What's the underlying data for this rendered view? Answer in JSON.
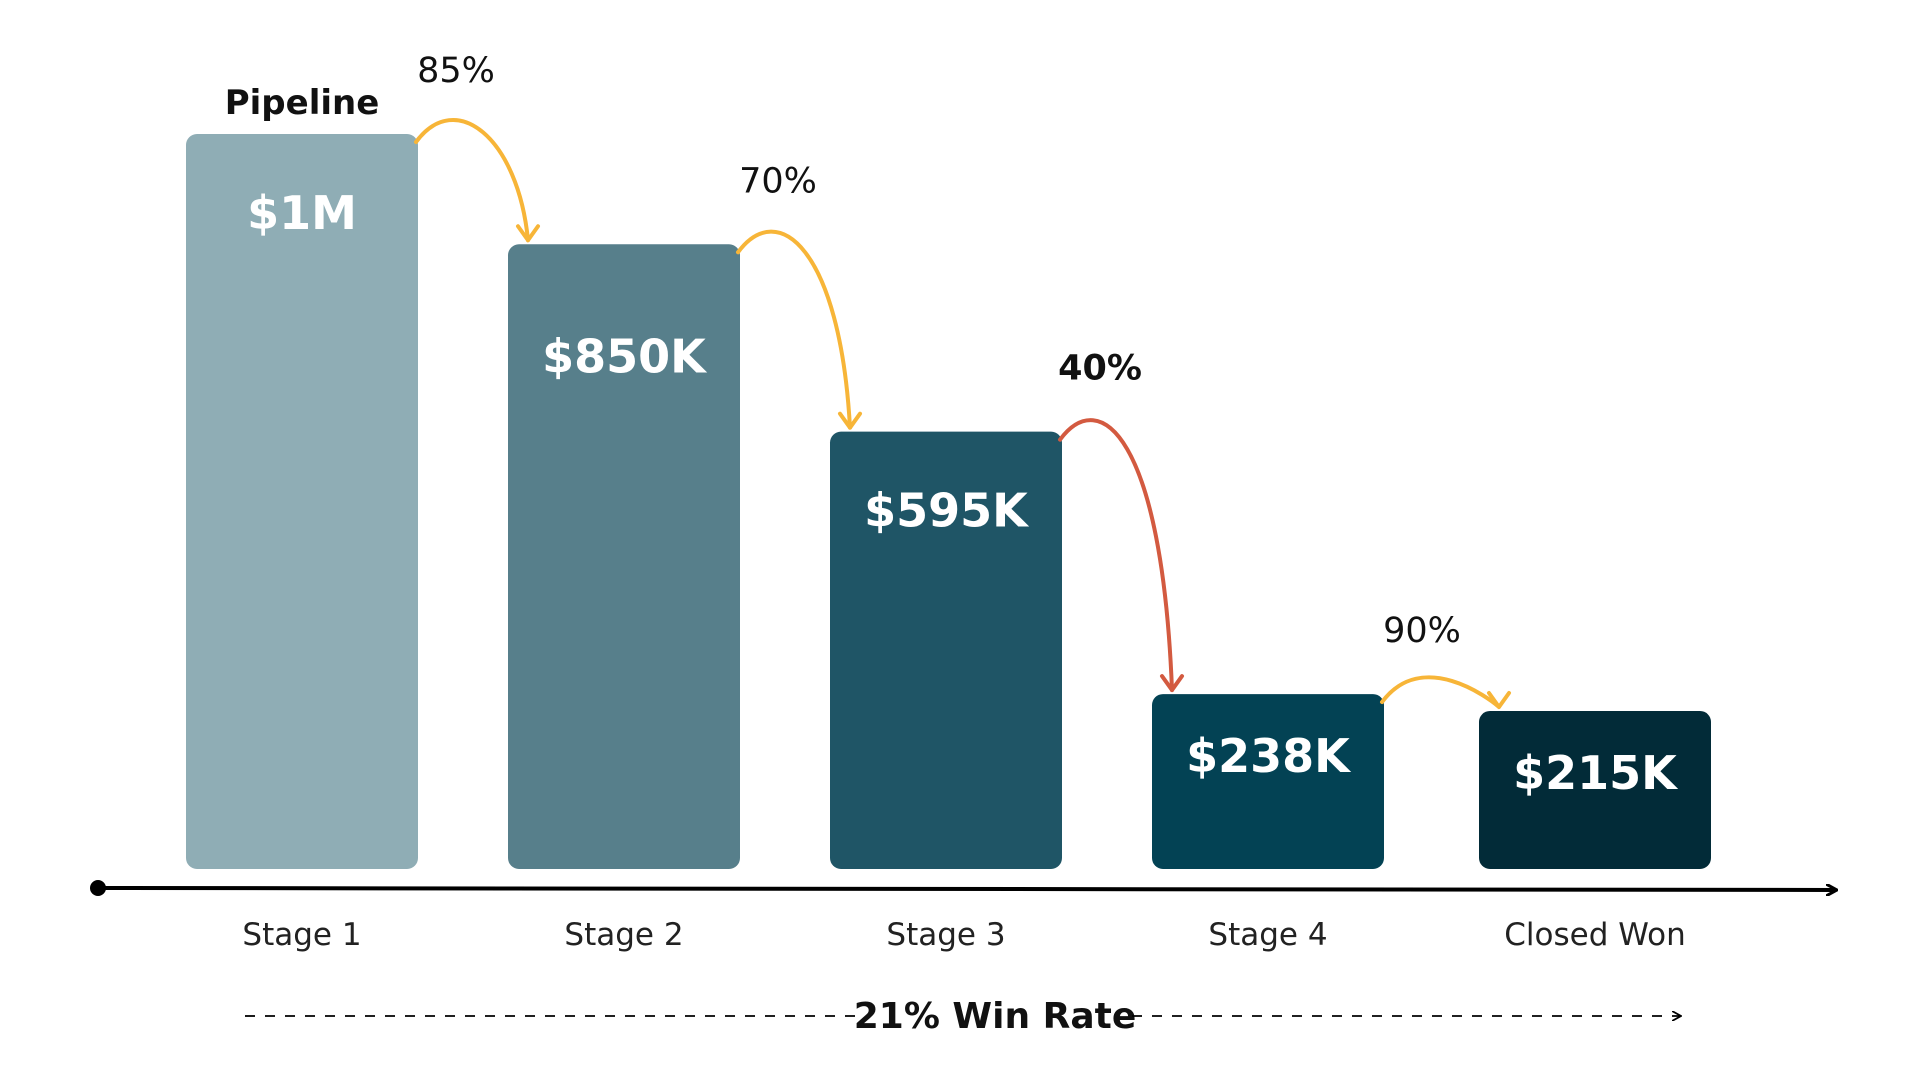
{
  "chart_data": {
    "type": "bar",
    "title": "Pipeline",
    "categories": [
      "Stage 1",
      "Stage 2",
      "Stage 3",
      "Stage 4",
      "Closed Won"
    ],
    "values": [
      1000000,
      850000,
      595000,
      238000,
      215000
    ],
    "value_labels": [
      "$1M",
      "$850K",
      "$595K",
      "$238K",
      "$215K"
    ],
    "bar_colors": [
      "#8fadb5",
      "#577f8b",
      "#1f5566",
      "#034254",
      "#022b38"
    ],
    "ylim": [
      0,
      1000000
    ],
    "grid": false,
    "conversion_rates": [
      {
        "from": "Stage 1",
        "to": "Stage 2",
        "label": "85%",
        "color": "#f7b538",
        "bold": false
      },
      {
        "from": "Stage 2",
        "to": "Stage 3",
        "label": "70%",
        "color": "#f7b538",
        "bold": false
      },
      {
        "from": "Stage 3",
        "to": "Stage 4",
        "label": "40%",
        "color": "#d35a40",
        "bold": true
      },
      {
        "from": "Stage 4",
        "to": "Closed Won",
        "label": "90%",
        "color": "#f7b538",
        "bold": false
      }
    ],
    "footer": "21% Win Rate"
  }
}
